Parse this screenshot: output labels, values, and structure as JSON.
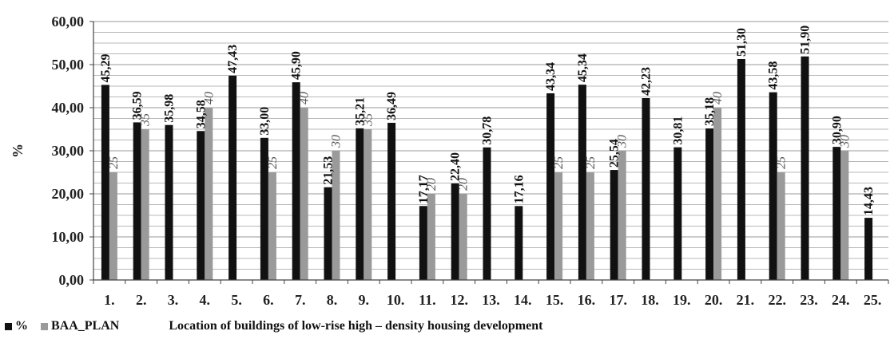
{
  "chart_data": {
    "type": "bar",
    "title": "",
    "xlabel": "Location of buildings of low-rise high – density housing development",
    "ylabel": "%",
    "ylim": [
      0,
      60
    ],
    "yticks": [
      "0,00",
      "10,00",
      "20,00",
      "30,00",
      "40,00",
      "50,00",
      "60,00"
    ],
    "grid": true,
    "legend_position": "bottom-left",
    "categories": [
      "1.",
      "2.",
      "3.",
      "4.",
      "5.",
      "6.",
      "7.",
      "8.",
      "9.",
      "10.",
      "11.",
      "12.",
      "13.",
      "14.",
      "15.",
      "16.",
      "17.",
      "18.",
      "19.",
      "20.",
      "21.",
      "22.",
      "23.",
      "24.",
      "25."
    ],
    "series": [
      {
        "name": "%",
        "color": "#111111",
        "values": [
          45.29,
          36.59,
          35.98,
          34.58,
          47.43,
          33.0,
          45.9,
          21.53,
          35.21,
          36.49,
          17.17,
          22.4,
          30.78,
          17.16,
          43.34,
          45.34,
          25.54,
          42.23,
          30.81,
          35.18,
          51.3,
          43.58,
          51.9,
          30.9,
          14.43
        ],
        "labels": [
          "45,29",
          "36,59",
          "35,98",
          "34,58",
          "47,43",
          "33,00",
          "45,90",
          "21,53",
          "35,21",
          "36,49",
          "17,17",
          "22,40",
          "30,78",
          "17,16",
          "43,34",
          "45,34",
          "25,54",
          "42,23",
          "30,81",
          "35,18",
          "51,30",
          "43,58",
          "51,90",
          "30,90",
          "14,43"
        ]
      },
      {
        "name": "BAA_PLAN",
        "color": "#9a9a9a",
        "values": [
          25,
          35,
          null,
          40,
          null,
          25,
          40,
          30,
          35,
          null,
          20,
          20,
          null,
          null,
          25,
          25,
          30,
          null,
          null,
          40,
          null,
          25,
          null,
          30,
          null
        ],
        "labels": [
          "25",
          "35",
          null,
          "40",
          null,
          "25",
          "40",
          "30",
          "35",
          null,
          "20",
          "20",
          null,
          null,
          "25",
          "25",
          "30",
          null,
          null,
          "40",
          null,
          "25",
          null,
          "30",
          null
        ]
      }
    ]
  },
  "legend": {
    "series1_label": "%",
    "series2_label": "BAA_PLAN",
    "title": "Location of buildings of low-rise high – density housing development"
  }
}
